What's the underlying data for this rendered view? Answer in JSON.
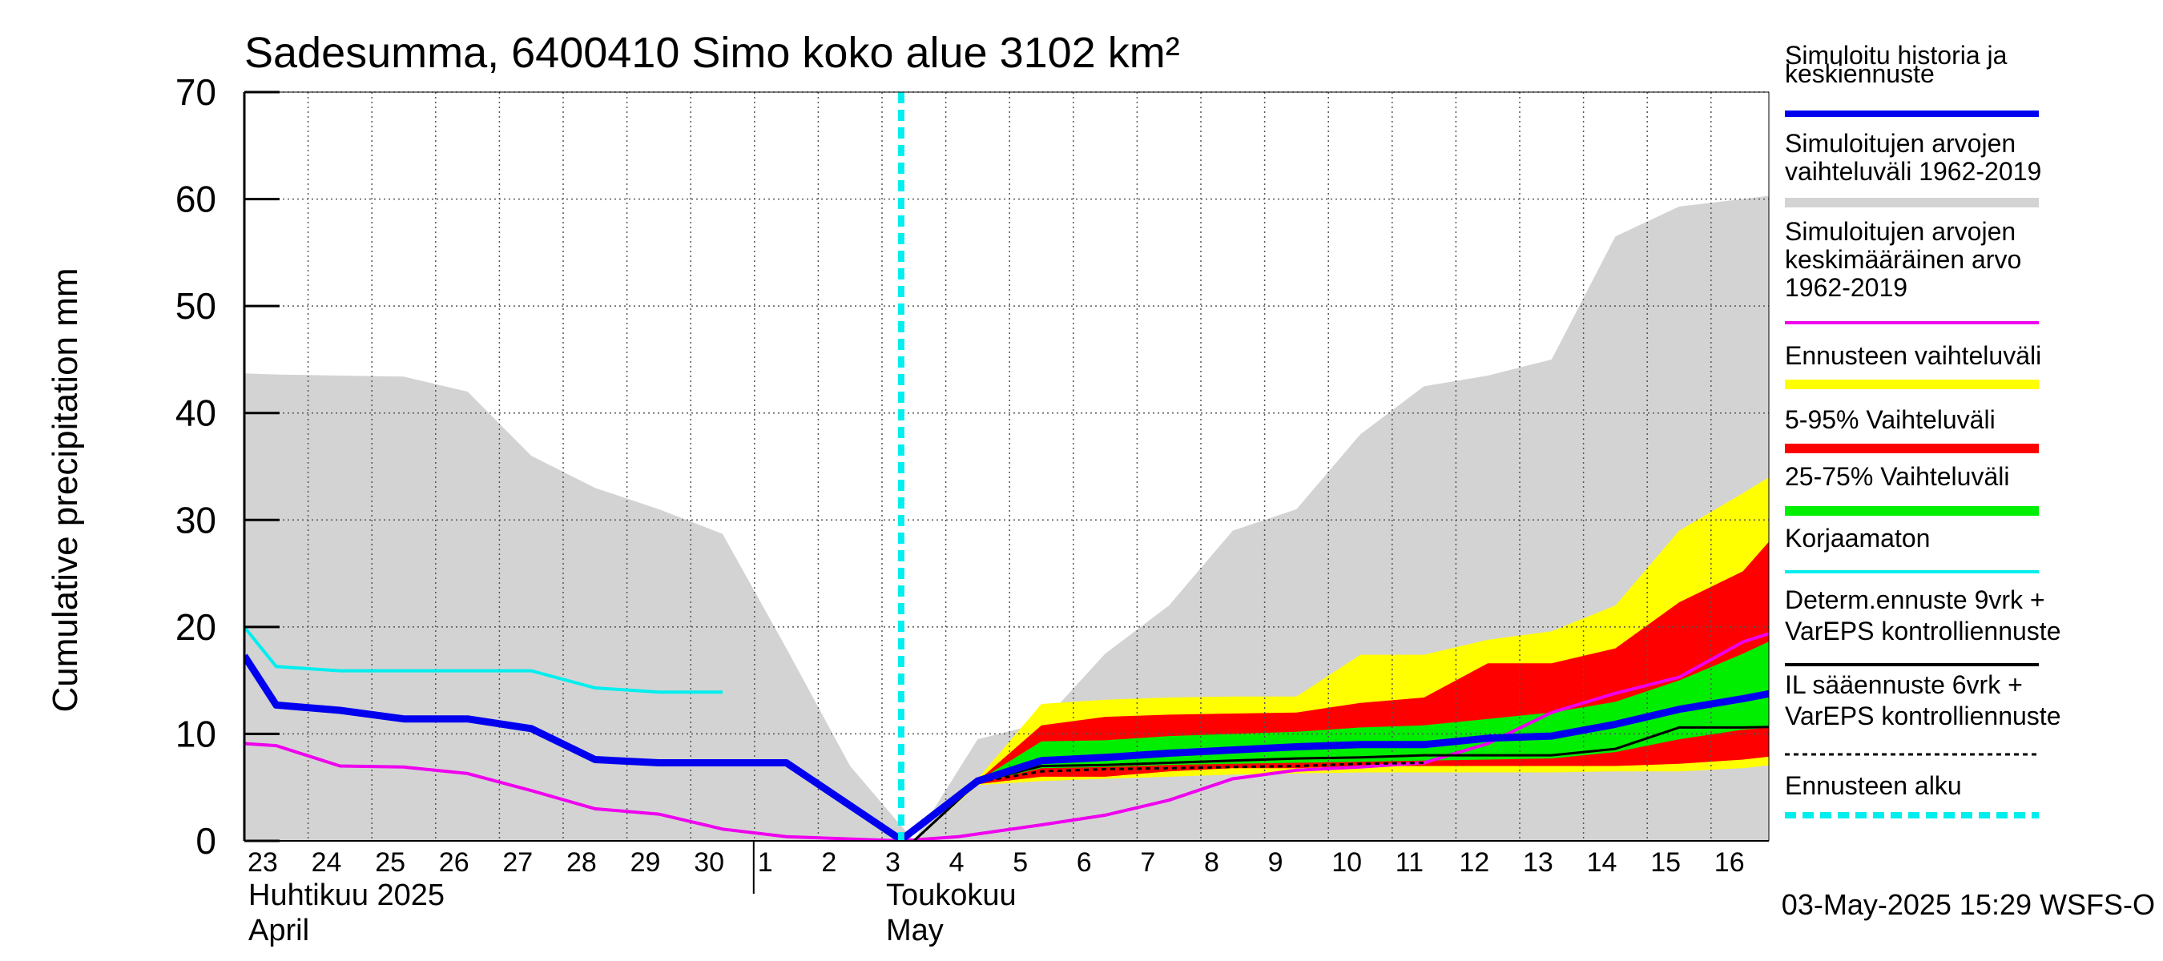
{
  "chart_data": {
    "type": "area",
    "title": "Sadesumma, 6400410 Simo koko alue 3102 km²",
    "ylabel": "Cumulative precipitation   mm",
    "ylim": [
      0,
      70
    ],
    "yticks": [
      0,
      10,
      20,
      30,
      40,
      50,
      60,
      70
    ],
    "xlim": [
      -0.5,
      23.9
    ],
    "day_labels": [
      "23",
      "24",
      "25",
      "26",
      "27",
      "28",
      "29",
      "30",
      "1",
      "2",
      "3",
      "4",
      "5",
      "6",
      "7",
      "8",
      "9",
      "10",
      "11",
      "12",
      "13",
      "14",
      "15",
      "16"
    ],
    "month_labels": [
      {
        "line1": "Huhtikuu  2025",
        "line2": "April"
      },
      {
        "line1": "Toukokuu",
        "line2": "May"
      }
    ],
    "forecast_start": 9.8,
    "footer": "03-May-2025 15:29 WSFS-O",
    "grid": true,
    "legend_position": "right",
    "colors": {
      "history": "#0000ee",
      "hist_range": "#d3d3d3",
      "hist_mean": "#ee00ee",
      "ens_range": "#ffff00",
      "p5_95": "#ff0000",
      "p25_75": "#00ee00",
      "uncorrected": "#00eeee",
      "determ": "#000000",
      "il": "#000000",
      "forecast_start": "#00eeee"
    },
    "legend": [
      {
        "key": "history",
        "lines": [
          "Simuloitu historia ja",
          "keskiennuste"
        ]
      },
      {
        "key": "hist_range",
        "lines": [
          "Simuloitujen arvojen",
          "vaihteluväli 1962-2019"
        ]
      },
      {
        "key": "hist_mean",
        "lines": [
          "Simuloitujen arvojen",
          "keskimääräinen arvo",
          "   1962-2019"
        ]
      },
      {
        "key": "ens_range",
        "lines": [
          "Ennusteen vaihteluväli"
        ]
      },
      {
        "key": "p5_95",
        "lines": [
          "5-95% Vaihteluväli"
        ]
      },
      {
        "key": "p25_75",
        "lines": [
          "25-75% Vaihteluväli"
        ]
      },
      {
        "key": "uncorrected",
        "lines": [
          "Korjaamaton"
        ]
      },
      {
        "key": "determ",
        "lines": [
          "Determ.ennuste 9vrk +",
          "VarEPS kontrolliennuste"
        ]
      },
      {
        "key": "il",
        "lines": [
          "IL sääennuste 6vrk  +",
          "  VarEPS kontrolliennuste"
        ]
      },
      {
        "key": "forecast_start",
        "lines": [
          "Ennusteen alku"
        ]
      }
    ],
    "series": {
      "hist_range": {
        "upper": [
          [
            -0.5,
            43.7
          ],
          [
            0,
            43.6
          ],
          [
            1,
            43.5
          ],
          [
            2,
            43.4
          ],
          [
            3,
            42
          ],
          [
            4,
            36
          ],
          [
            5,
            33
          ],
          [
            6,
            31
          ],
          [
            7,
            28.7
          ],
          [
            8,
            18
          ],
          [
            9,
            7
          ],
          [
            10,
            0
          ],
          [
            11,
            9.5
          ],
          [
            12,
            11
          ],
          [
            13,
            17.5
          ],
          [
            14,
            22
          ],
          [
            15,
            29
          ],
          [
            16,
            31
          ],
          [
            17,
            38
          ],
          [
            18,
            42.5
          ],
          [
            19,
            43.5
          ],
          [
            20,
            45
          ],
          [
            21,
            56.5
          ],
          [
            22,
            59.3
          ],
          [
            23,
            60
          ],
          [
            23.9,
            60.7
          ]
        ],
        "lower": [
          [
            -0.5,
            0
          ],
          [
            23.9,
            0
          ]
        ]
      },
      "ens_range": {
        "upper": [
          [
            10,
            0
          ],
          [
            11,
            5.8
          ],
          [
            12,
            12.8
          ],
          [
            13,
            13.2
          ],
          [
            14,
            13.4
          ],
          [
            15,
            13.5
          ],
          [
            16,
            13.5
          ],
          [
            17,
            17.4
          ],
          [
            18,
            17.4
          ],
          [
            19,
            18.8
          ],
          [
            20,
            19.6
          ],
          [
            21,
            22
          ],
          [
            22,
            29
          ],
          [
            23,
            32.5
          ],
          [
            23.9,
            35.8
          ]
        ],
        "lower": [
          [
            10,
            0
          ],
          [
            11,
            5.2
          ],
          [
            12,
            5.6
          ],
          [
            13,
            5.8
          ],
          [
            14,
            6
          ],
          [
            15,
            6.2
          ],
          [
            16,
            6.3
          ],
          [
            17,
            6.4
          ],
          [
            18,
            6.4
          ],
          [
            19,
            6.4
          ],
          [
            20,
            6.4
          ],
          [
            21,
            6.5
          ],
          [
            22,
            6.5
          ],
          [
            23,
            6.8
          ],
          [
            23.9,
            7.4
          ]
        ]
      },
      "p5_95": {
        "upper": [
          [
            10,
            0
          ],
          [
            11,
            5.6
          ],
          [
            12,
            10.8
          ],
          [
            13,
            11.6
          ],
          [
            14,
            11.8
          ],
          [
            15,
            11.9
          ],
          [
            16,
            12
          ],
          [
            17,
            12.9
          ],
          [
            18,
            13.4
          ],
          [
            19,
            16.6
          ],
          [
            20,
            16.6
          ],
          [
            21,
            18
          ],
          [
            22,
            22.3
          ],
          [
            23,
            25.2
          ],
          [
            23.9,
            31.3
          ]
        ],
        "lower": [
          [
            10,
            0
          ],
          [
            11,
            5.3
          ],
          [
            12,
            6
          ],
          [
            13,
            6
          ],
          [
            14,
            6.5
          ],
          [
            15,
            6.8
          ],
          [
            16,
            6.8
          ],
          [
            17,
            7
          ],
          [
            18,
            7
          ],
          [
            19,
            7
          ],
          [
            20,
            7
          ],
          [
            21,
            7
          ],
          [
            22,
            7.2
          ],
          [
            23,
            7.6
          ],
          [
            23.9,
            8.2
          ]
        ]
      },
      "p25_75": {
        "upper": [
          [
            10,
            0
          ],
          [
            11,
            5.6
          ],
          [
            12,
            9.3
          ],
          [
            13,
            9.4
          ],
          [
            14,
            9.8
          ],
          [
            15,
            10
          ],
          [
            16,
            10.2
          ],
          [
            17,
            10.6
          ],
          [
            18,
            10.8
          ],
          [
            19,
            11.4
          ],
          [
            20,
            12
          ],
          [
            21,
            13
          ],
          [
            22,
            15
          ],
          [
            23,
            17.5
          ],
          [
            23.9,
            20
          ]
        ],
        "lower": [
          [
            10,
            0
          ],
          [
            11,
            5.4
          ],
          [
            12,
            6.8
          ],
          [
            13,
            6.9
          ],
          [
            14,
            7.1
          ],
          [
            15,
            7.2
          ],
          [
            16,
            7.3
          ],
          [
            17,
            7.4
          ],
          [
            18,
            7.5
          ],
          [
            19,
            7.6
          ],
          [
            20,
            7.7
          ],
          [
            21,
            8.3
          ],
          [
            22,
            9.5
          ],
          [
            23,
            10.4
          ],
          [
            23.9,
            10.8
          ]
        ]
      },
      "history": [
        [
          -0.5,
          17.3
        ],
        [
          0,
          12.7
        ],
        [
          1,
          12.2
        ],
        [
          2,
          11.4
        ],
        [
          3,
          11.4
        ],
        [
          4,
          10.5
        ],
        [
          5,
          7.6
        ],
        [
          6,
          7.3
        ],
        [
          7,
          7.3
        ],
        [
          8,
          7.3
        ],
        [
          9.8,
          0.1
        ],
        [
          11,
          5.6
        ],
        [
          12,
          7.5
        ],
        [
          13,
          7.8
        ],
        [
          14,
          8.2
        ],
        [
          15,
          8.5
        ],
        [
          16,
          8.8
        ],
        [
          17,
          9
        ],
        [
          18,
          9
        ],
        [
          19,
          9.6
        ],
        [
          20,
          9.8
        ],
        [
          21,
          10.9
        ],
        [
          22,
          12.3
        ],
        [
          23,
          13.3
        ],
        [
          23.9,
          14.3
        ]
      ],
      "hist_mean": [
        [
          -0.5,
          9.1
        ],
        [
          0,
          8.9
        ],
        [
          1,
          7
        ],
        [
          2,
          6.9
        ],
        [
          3,
          6.3
        ],
        [
          4,
          4.7
        ],
        [
          5,
          3
        ],
        [
          6,
          2.5
        ],
        [
          7,
          1.1
        ],
        [
          8,
          0.4
        ],
        [
          9.8,
          0
        ],
        [
          10.7,
          0.4
        ],
        [
          12,
          1.5
        ],
        [
          13,
          2.4
        ],
        [
          14,
          3.8
        ],
        [
          15,
          5.8
        ],
        [
          16,
          6.6
        ],
        [
          17,
          6.9
        ],
        [
          18,
          7.3
        ],
        [
          19,
          9.1
        ],
        [
          20,
          12
        ],
        [
          21,
          13.8
        ],
        [
          22,
          15.3
        ],
        [
          23,
          18.6
        ],
        [
          23.9,
          20.3
        ]
      ],
      "uncorrected": [
        [
          -0.5,
          20
        ],
        [
          0,
          16.3
        ],
        [
          1,
          15.9
        ],
        [
          2,
          15.9
        ],
        [
          3,
          15.9
        ],
        [
          4,
          15.9
        ],
        [
          5,
          14.3
        ],
        [
          6,
          13.9
        ],
        [
          7,
          13.9
        ]
      ],
      "determ": [
        [
          10,
          0
        ],
        [
          11,
          5.5
        ],
        [
          12,
          7
        ],
        [
          13,
          7.1
        ],
        [
          14,
          7.3
        ],
        [
          15,
          7.5
        ],
        [
          16,
          7.7
        ],
        [
          17,
          7.8
        ],
        [
          18,
          8
        ],
        [
          19,
          8
        ],
        [
          20,
          8
        ],
        [
          21,
          8.6
        ],
        [
          22,
          10.6
        ],
        [
          23,
          10.6
        ],
        [
          23.9,
          10.7
        ]
      ],
      "il": [
        [
          10,
          0
        ],
        [
          11,
          5.5
        ],
        [
          12,
          6.5
        ],
        [
          13,
          6.7
        ],
        [
          14,
          6.8
        ],
        [
          15,
          6.9
        ],
        [
          16,
          7
        ],
        [
          17,
          7.2
        ],
        [
          18,
          7.3
        ]
      ]
    }
  }
}
